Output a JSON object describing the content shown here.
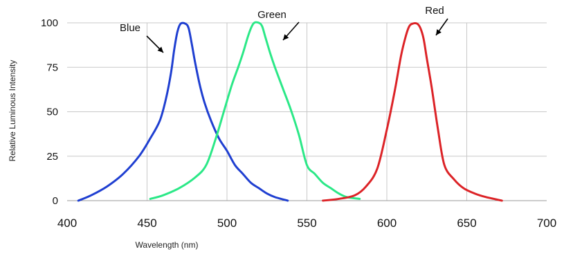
{
  "chart_data": {
    "type": "line",
    "title": "",
    "xlabel": "Wavelength (nm)",
    "ylabel": "Relative Luminous Intensity",
    "xlim": [
      400,
      700
    ],
    "ylim": [
      0,
      100
    ],
    "x_ticks": [
      400,
      450,
      500,
      550,
      600,
      650,
      700
    ],
    "y_ticks": [
      0,
      25,
      50,
      75,
      100
    ],
    "grid": true,
    "series": [
      {
        "name": "Blue",
        "color": "#1f3fd1",
        "points": [
          [
            407,
            0
          ],
          [
            415,
            3
          ],
          [
            425,
            8
          ],
          [
            435,
            15
          ],
          [
            445,
            25
          ],
          [
            452,
            35
          ],
          [
            458,
            45
          ],
          [
            462,
            58
          ],
          [
            465,
            72
          ],
          [
            467,
            85
          ],
          [
            469,
            95
          ],
          [
            471,
            99.5
          ],
          [
            474,
            99.5
          ],
          [
            476,
            97
          ],
          [
            478,
            88
          ],
          [
            480,
            78
          ],
          [
            483,
            65
          ],
          [
            486,
            55
          ],
          [
            490,
            45
          ],
          [
            495,
            35
          ],
          [
            500,
            28
          ],
          [
            505,
            20
          ],
          [
            510,
            15
          ],
          [
            515,
            10
          ],
          [
            520,
            7
          ],
          [
            525,
            4
          ],
          [
            530,
            2
          ],
          [
            538,
            0
          ]
        ]
      },
      {
        "name": "Green",
        "color": "#2be887",
        "points": [
          [
            452,
            1
          ],
          [
            460,
            3
          ],
          [
            470,
            7
          ],
          [
            480,
            13
          ],
          [
            487,
            20
          ],
          [
            493,
            35
          ],
          [
            498,
            50
          ],
          [
            503,
            65
          ],
          [
            507,
            75
          ],
          [
            510,
            83
          ],
          [
            513,
            92
          ],
          [
            515,
            97
          ],
          [
            517,
            100
          ],
          [
            520,
            100
          ],
          [
            522,
            98
          ],
          [
            524,
            92
          ],
          [
            527,
            83
          ],
          [
            530,
            75
          ],
          [
            535,
            63
          ],
          [
            540,
            51
          ],
          [
            545,
            37
          ],
          [
            550,
            20
          ],
          [
            555,
            15
          ],
          [
            560,
            10
          ],
          [
            565,
            7
          ],
          [
            570,
            4
          ],
          [
            575,
            2
          ],
          [
            583,
            1
          ]
        ]
      },
      {
        "name": "Red",
        "color": "#dc2327",
        "points": [
          [
            560,
            0
          ],
          [
            570,
            1
          ],
          [
            580,
            3
          ],
          [
            587,
            8
          ],
          [
            594,
            18
          ],
          [
            600,
            40
          ],
          [
            605,
            62
          ],
          [
            609,
            82
          ],
          [
            612,
            93
          ],
          [
            614,
            98
          ],
          [
            616,
            99.5
          ],
          [
            619,
            99.5
          ],
          [
            621,
            97
          ],
          [
            623,
            91
          ],
          [
            625,
            80
          ],
          [
            628,
            64
          ],
          [
            632,
            40
          ],
          [
            636,
            20
          ],
          [
            642,
            12
          ],
          [
            648,
            7
          ],
          [
            655,
            4
          ],
          [
            662,
            2
          ],
          [
            672,
            0
          ]
        ]
      }
    ],
    "annotations": [
      {
        "text": "Blue",
        "series": "Blue"
      },
      {
        "text": "Green",
        "series": "Green"
      },
      {
        "text": "Red",
        "series": "Red"
      }
    ]
  }
}
